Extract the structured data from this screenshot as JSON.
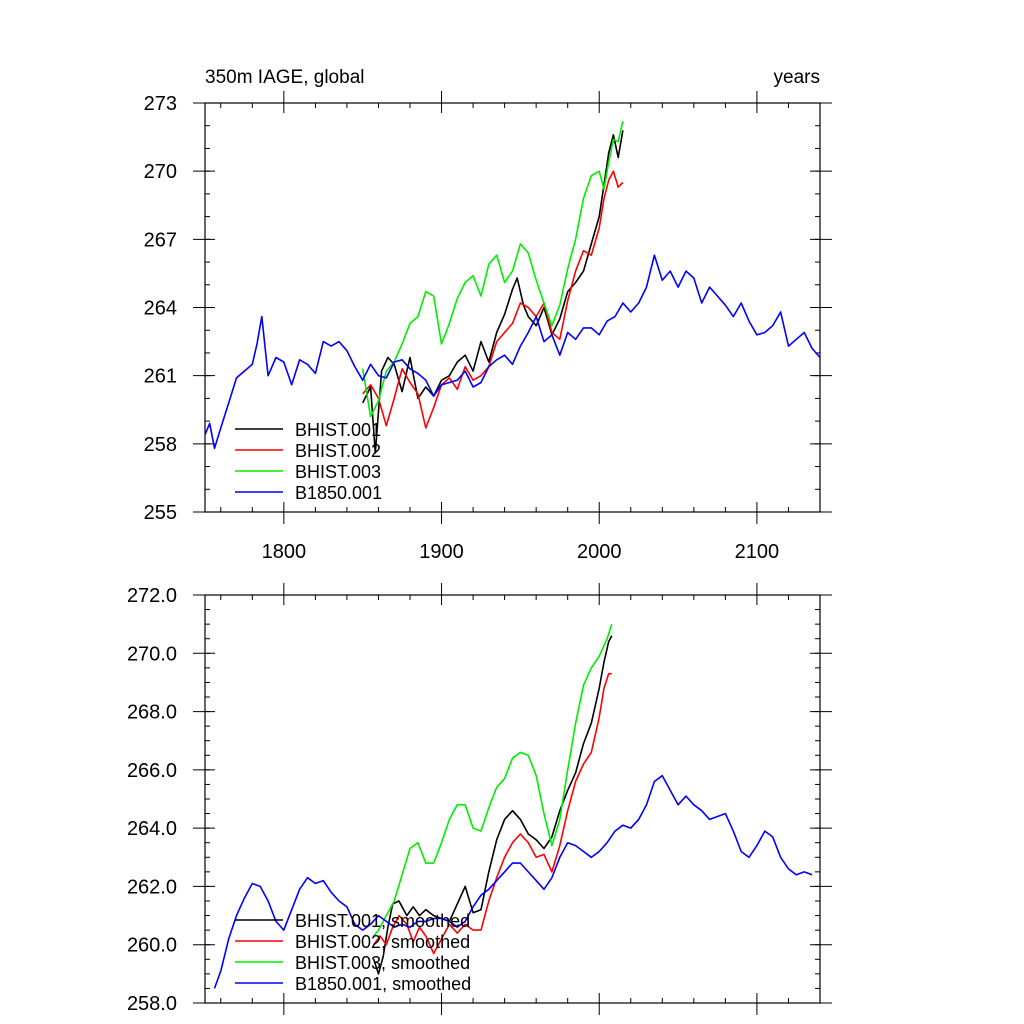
{
  "chart_data": [
    {
      "type": "line",
      "title_left": "350m IAGE, global",
      "title_right": "years",
      "xlim": [
        1750,
        2140
      ],
      "ylim": [
        255,
        273
      ],
      "x_ticks": [
        1800,
        1900,
        2000,
        2100
      ],
      "x_tick_labels": [
        "1800",
        "1900",
        "2000",
        "2100"
      ],
      "y_ticks": [
        255,
        258,
        261,
        264,
        267,
        270,
        273
      ],
      "y_tick_labels": [
        "255",
        "258",
        "261",
        "264",
        "267",
        "270",
        "273"
      ],
      "legend_position": "bottom-left",
      "series": [
        {
          "name": "BHIST.001",
          "color": "#000000",
          "x": [
            1850,
            1855,
            1858,
            1862,
            1866,
            1870,
            1875,
            1880,
            1885,
            1890,
            1895,
            1900,
            1905,
            1910,
            1915,
            1920,
            1925,
            1930,
            1935,
            1940,
            1945,
            1948,
            1952,
            1955,
            1960,
            1965,
            1970,
            1975,
            1980,
            1985,
            1990,
            1995,
            2000,
            2003,
            2006,
            2009,
            2012,
            2015
          ],
          "y": [
            259.8,
            260.5,
            257.6,
            261.2,
            261.8,
            261.5,
            260.3,
            261.8,
            260.0,
            260.5,
            260.1,
            260.8,
            261.0,
            261.6,
            261.9,
            261.2,
            262.5,
            261.6,
            262.9,
            263.7,
            264.8,
            265.3,
            264.1,
            263.6,
            263.2,
            264.0,
            262.8,
            263.5,
            264.7,
            265.1,
            265.6,
            266.8,
            268.0,
            269.4,
            270.8,
            271.6,
            270.6,
            271.8
          ]
        },
        {
          "name": "BHIST.002",
          "color": "#ff0000",
          "x": [
            1850,
            1855,
            1860,
            1865,
            1870,
            1875,
            1880,
            1885,
            1890,
            1895,
            1900,
            1905,
            1910,
            1915,
            1920,
            1925,
            1930,
            1935,
            1940,
            1945,
            1950,
            1955,
            1960,
            1965,
            1970,
            1975,
            1980,
            1985,
            1990,
            1995,
            2000,
            2003,
            2006,
            2009,
            2012,
            2015
          ],
          "y": [
            260.2,
            260.6,
            260.0,
            258.8,
            260.0,
            261.3,
            260.7,
            260.2,
            258.7,
            259.6,
            260.6,
            260.9,
            260.4,
            261.4,
            260.8,
            261.0,
            261.4,
            262.5,
            262.9,
            263.3,
            264.2,
            264.0,
            263.6,
            264.2,
            262.9,
            262.6,
            264.3,
            265.6,
            266.5,
            266.3,
            267.5,
            268.8,
            269.6,
            270.0,
            269.3,
            269.5
          ]
        },
        {
          "name": "BHIST.003",
          "color": "#00ee00",
          "x": [
            1850,
            1855,
            1860,
            1865,
            1870,
            1875,
            1880,
            1885,
            1890,
            1895,
            1900,
            1905,
            1910,
            1915,
            1920,
            1925,
            1930,
            1935,
            1940,
            1945,
            1950,
            1955,
            1960,
            1965,
            1970,
            1975,
            1980,
            1985,
            1990,
            1995,
            2000,
            2003,
            2006,
            2009,
            2012,
            2015
          ],
          "y": [
            261.3,
            259.2,
            259.9,
            261.2,
            261.6,
            262.4,
            263.3,
            263.6,
            264.7,
            264.5,
            262.4,
            263.3,
            264.4,
            265.1,
            265.4,
            264.5,
            265.9,
            266.3,
            265.1,
            265.6,
            266.8,
            266.4,
            265.2,
            264.2,
            263.2,
            264.1,
            265.7,
            267.0,
            268.8,
            269.8,
            270.0,
            269.2,
            270.4,
            271.4,
            271.3,
            272.2
          ]
        },
        {
          "name": "B1850.001",
          "color": "#0000ff",
          "x": [
            1750,
            1753,
            1756,
            1760,
            1765,
            1770,
            1775,
            1780,
            1783,
            1786,
            1790,
            1795,
            1800,
            1805,
            1810,
            1815,
            1820,
            1825,
            1830,
            1835,
            1840,
            1845,
            1850,
            1855,
            1860,
            1865,
            1870,
            1875,
            1880,
            1885,
            1890,
            1895,
            1900,
            1905,
            1910,
            1915,
            1920,
            1925,
            1930,
            1935,
            1940,
            1945,
            1950,
            1955,
            1960,
            1965,
            1970,
            1975,
            1980,
            1985,
            1990,
            1995,
            2000,
            2005,
            2010,
            2015,
            2020,
            2025,
            2030,
            2035,
            2040,
            2045,
            2050,
            2055,
            2060,
            2065,
            2070,
            2075,
            2080,
            2085,
            2090,
            2095,
            2100,
            2105,
            2110,
            2115,
            2120,
            2125,
            2130,
            2135,
            2140
          ],
          "y": [
            258.4,
            258.9,
            257.8,
            258.7,
            259.8,
            260.9,
            261.2,
            261.5,
            262.4,
            263.6,
            261.0,
            261.8,
            261.6,
            260.6,
            261.7,
            261.5,
            261.1,
            262.5,
            262.3,
            262.5,
            262.1,
            261.4,
            260.8,
            261.5,
            261.0,
            260.9,
            261.6,
            261.7,
            261.3,
            261.1,
            260.8,
            260.1,
            260.6,
            260.7,
            260.8,
            261.2,
            260.5,
            260.7,
            261.4,
            261.7,
            261.9,
            261.5,
            262.3,
            262.9,
            263.6,
            262.5,
            262.8,
            261.9,
            262.9,
            262.6,
            263.1,
            263.1,
            262.8,
            263.4,
            263.6,
            264.2,
            263.8,
            264.2,
            264.9,
            266.3,
            265.2,
            265.6,
            264.9,
            265.6,
            265.3,
            264.2,
            264.9,
            264.5,
            264.1,
            263.6,
            264.2,
            263.4,
            262.8,
            262.9,
            263.2,
            263.8,
            262.3,
            262.6,
            262.9,
            262.2,
            261.8
          ]
        }
      ]
    },
    {
      "type": "line",
      "title_left": "",
      "title_right": "",
      "xlim": [
        1750,
        2140
      ],
      "ylim": [
        258,
        272
      ],
      "x_ticks": [
        1800,
        1900,
        2000,
        2100
      ],
      "x_tick_labels": [],
      "y_ticks": [
        258,
        260,
        262,
        264,
        266,
        268,
        270,
        272
      ],
      "y_tick_labels": [
        "258.0",
        "260.0",
        "262.0",
        "264.0",
        "266.0",
        "268.0",
        "270.0",
        "272.0"
      ],
      "legend_position": "bottom-left",
      "series": [
        {
          "name": "BHIST.001, smoothed",
          "color": "#000000",
          "x": [
            1857,
            1860,
            1863,
            1866,
            1869,
            1873,
            1878,
            1882,
            1886,
            1890,
            1895,
            1900,
            1905,
            1910,
            1915,
            1920,
            1925,
            1930,
            1935,
            1940,
            1945,
            1950,
            1955,
            1960,
            1965,
            1970,
            1975,
            1980,
            1985,
            1990,
            1995,
            2000,
            2003,
            2006,
            2008
          ],
          "y": [
            259.5,
            259.0,
            259.6,
            260.6,
            261.4,
            261.5,
            261.0,
            261.3,
            261.0,
            261.2,
            261.0,
            260.9,
            260.8,
            261.4,
            262.0,
            261.1,
            261.2,
            262.5,
            263.6,
            264.3,
            264.6,
            264.3,
            263.8,
            263.6,
            263.3,
            263.7,
            264.6,
            265.3,
            265.9,
            266.9,
            267.6,
            268.8,
            269.7,
            270.4,
            270.6
          ]
        },
        {
          "name": "BHIST.002, smoothed",
          "color": "#ff0000",
          "x": [
            1857,
            1861,
            1865,
            1869,
            1873,
            1878,
            1882,
            1886,
            1890,
            1895,
            1900,
            1905,
            1910,
            1915,
            1920,
            1925,
            1930,
            1935,
            1940,
            1945,
            1950,
            1955,
            1960,
            1965,
            1970,
            1975,
            1980,
            1985,
            1990,
            1995,
            2000,
            2003,
            2006,
            2008
          ],
          "y": [
            260.0,
            260.3,
            260.0,
            260.6,
            261.0,
            260.7,
            260.1,
            260.6,
            260.3,
            259.7,
            260.2,
            260.7,
            260.4,
            260.7,
            260.5,
            260.5,
            261.5,
            262.3,
            263.0,
            263.5,
            263.8,
            263.5,
            263.0,
            263.1,
            262.5,
            263.4,
            264.6,
            265.6,
            266.2,
            266.6,
            267.8,
            268.8,
            269.3,
            269.3
          ]
        },
        {
          "name": "BHIST.003, smoothed",
          "color": "#00ee00",
          "x": [
            1857,
            1860,
            1865,
            1870,
            1875,
            1880,
            1885,
            1890,
            1895,
            1900,
            1905,
            1910,
            1915,
            1920,
            1925,
            1930,
            1935,
            1940,
            1945,
            1950,
            1955,
            1960,
            1965,
            1970,
            1975,
            1980,
            1985,
            1990,
            1995,
            2000,
            2005,
            2008
          ],
          "y": [
            260.3,
            260.5,
            261.0,
            261.5,
            262.4,
            263.3,
            263.5,
            262.8,
            262.8,
            263.5,
            264.3,
            264.8,
            264.8,
            264.0,
            263.9,
            264.7,
            265.4,
            265.7,
            266.4,
            266.6,
            266.5,
            265.8,
            264.5,
            263.4,
            264.3,
            266.0,
            267.6,
            268.9,
            269.5,
            269.9,
            270.5,
            271.0
          ]
        },
        {
          "name": "B1850.001, smoothed",
          "color": "#0000ff",
          "x": [
            1756,
            1760,
            1765,
            1770,
            1775,
            1780,
            1785,
            1790,
            1795,
            1800,
            1805,
            1810,
            1815,
            1820,
            1825,
            1830,
            1835,
            1840,
            1845,
            1850,
            1855,
            1860,
            1865,
            1870,
            1875,
            1880,
            1885,
            1890,
            1895,
            1900,
            1905,
            1910,
            1915,
            1920,
            1925,
            1930,
            1935,
            1940,
            1945,
            1950,
            1955,
            1960,
            1965,
            1970,
            1975,
            1980,
            1985,
            1990,
            1995,
            2000,
            2005,
            2010,
            2015,
            2020,
            2025,
            2030,
            2035,
            2040,
            2045,
            2050,
            2055,
            2060,
            2065,
            2070,
            2075,
            2080,
            2085,
            2090,
            2095,
            2100,
            2105,
            2110,
            2115,
            2120,
            2125,
            2130,
            2135
          ],
          "y": [
            258.5,
            259.1,
            260.2,
            261.0,
            261.6,
            262.1,
            262.0,
            261.5,
            260.8,
            260.5,
            261.2,
            261.9,
            262.3,
            262.1,
            262.2,
            261.8,
            261.5,
            261.3,
            260.7,
            260.5,
            260.7,
            261.0,
            260.8,
            260.6,
            260.7,
            260.6,
            260.8,
            260.8,
            260.9,
            260.9,
            260.8,
            260.6,
            260.8,
            261.3,
            261.7,
            261.9,
            262.2,
            262.5,
            262.8,
            262.8,
            262.5,
            262.2,
            261.9,
            262.3,
            263.0,
            263.5,
            263.4,
            263.2,
            263.0,
            263.2,
            263.5,
            263.9,
            264.1,
            264.0,
            264.3,
            264.8,
            265.6,
            265.8,
            265.3,
            264.8,
            265.1,
            264.8,
            264.6,
            264.3,
            264.4,
            264.5,
            263.9,
            263.2,
            263.0,
            263.4,
            263.9,
            263.7,
            263.0,
            262.6,
            262.4,
            262.5,
            262.4
          ]
        }
      ]
    }
  ]
}
